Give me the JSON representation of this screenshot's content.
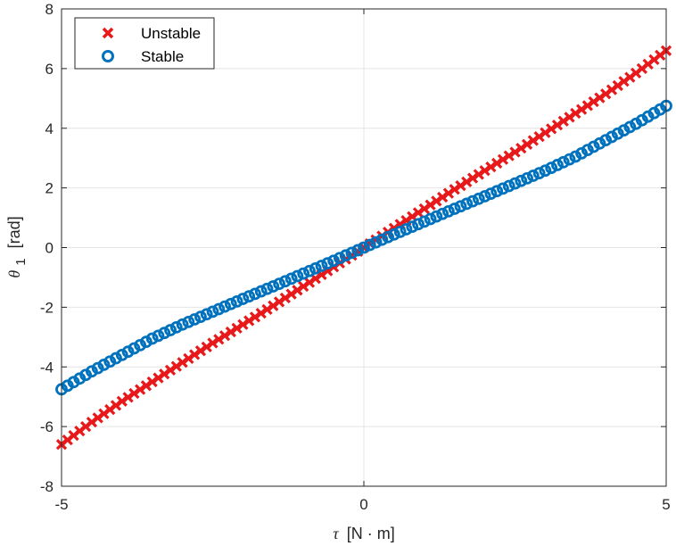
{
  "chart_data": {
    "type": "scatter",
    "title": "",
    "xlabel": {
      "symbol": "τ",
      "unit": "[N · m]"
    },
    "ylabel": {
      "symbol": "θ",
      "subscript": "1",
      "unit": "[rad]"
    },
    "xlim": [
      -5,
      5
    ],
    "ylim": [
      -8,
      8
    ],
    "xticks": [
      -5,
      0,
      5
    ],
    "xtick_labels": [
      "-5",
      "0",
      "5"
    ],
    "yticks": [
      -8,
      -6,
      -4,
      -2,
      0,
      2,
      4,
      6,
      8
    ],
    "ytick_labels": [
      "-8",
      "-6",
      "-4",
      "-2",
      "0",
      "2",
      "4",
      "6",
      "8"
    ],
    "grid": true,
    "legend_position": "top-left",
    "series": [
      {
        "name": "Unstable",
        "marker": "x",
        "color": "#e8191b",
        "x": [
          -5.0,
          -4.5,
          -4.0,
          -3.5,
          -3.0,
          -2.5,
          -2.0,
          -1.5,
          -1.0,
          -0.5,
          0.0,
          0.5,
          1.0,
          1.5,
          2.0,
          2.5,
          3.0,
          3.5,
          4.0,
          4.5,
          5.0
        ],
        "y": [
          -6.6,
          -5.85,
          -5.15,
          -4.5,
          -3.85,
          -3.2,
          -2.58,
          -1.95,
          -1.3,
          -0.65,
          0.0,
          0.65,
          1.3,
          1.95,
          2.58,
          3.2,
          3.85,
          4.5,
          5.15,
          5.85,
          6.6
        ]
      },
      {
        "name": "Stable",
        "marker": "o",
        "color": "#0072bd",
        "x": [
          -5.0,
          -4.5,
          -4.0,
          -3.5,
          -3.0,
          -2.5,
          -2.0,
          -1.5,
          -1.0,
          -0.5,
          0.0,
          0.5,
          1.0,
          1.5,
          2.0,
          2.5,
          3.0,
          3.5,
          4.0,
          4.5,
          5.0
        ],
        "y": [
          -4.75,
          -4.15,
          -3.6,
          -3.05,
          -2.58,
          -2.15,
          -1.72,
          -1.3,
          -0.87,
          -0.44,
          0.0,
          0.44,
          0.87,
          1.3,
          1.72,
          2.15,
          2.58,
          3.05,
          3.6,
          4.15,
          4.75
        ]
      }
    ]
  }
}
